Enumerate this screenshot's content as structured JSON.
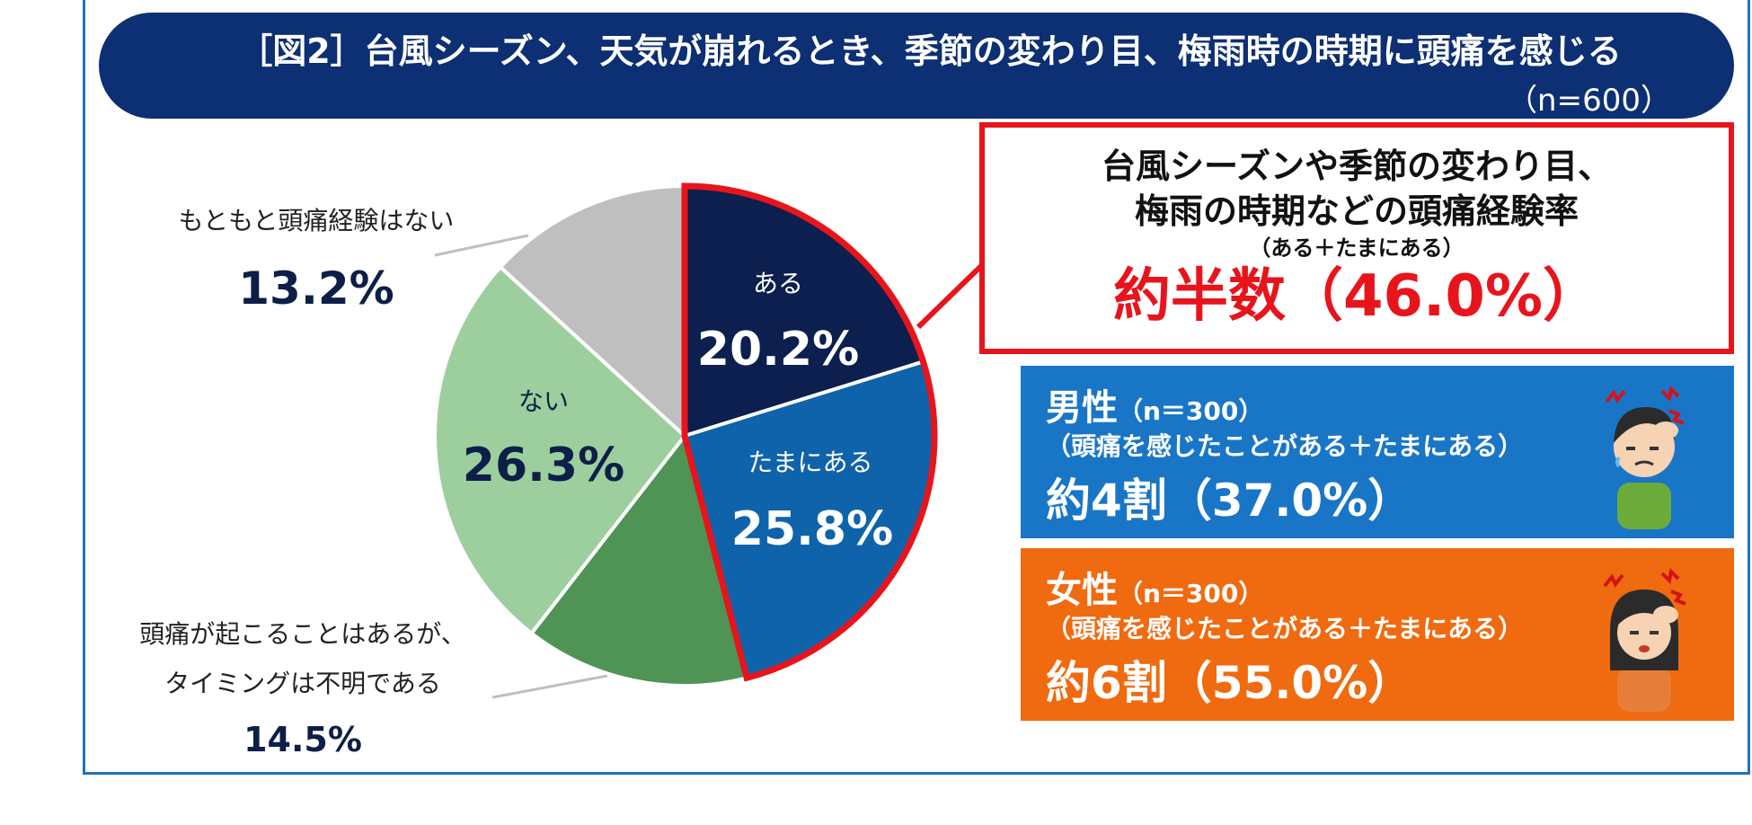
{
  "header": {
    "title": "［図2］台風シーズン、天気が崩れるとき、季節の変わり目、梅雨時の時期に頭痛を感じる",
    "sample": "（n=600）"
  },
  "chart_data": {
    "type": "pie",
    "title": "［図2］台風シーズン、天気が崩れるとき、季節の変わり目、梅雨時の時期に頭痛を感じる",
    "slices": [
      {
        "label": "ある",
        "value_label": "20.2%",
        "value": 20.2,
        "color": "#0c1f4e"
      },
      {
        "label": "たまにある",
        "value_label": "25.8%",
        "value": 25.8,
        "color": "#0f63ab"
      },
      {
        "label_lines": [
          "頭痛が起こることはあるが、",
          "タイミングは不明である"
        ],
        "value_label": "14.5%",
        "value": 14.5,
        "color": "#4f9455"
      },
      {
        "label": "ない",
        "value_label": "26.3%",
        "value": 26.3,
        "color": "#9ccf9d"
      },
      {
        "label": "もともと頭痛経験はない",
        "value_label": "13.2%",
        "value": 13.2,
        "color": "#bfbfbf"
      }
    ],
    "highlight_color": "#e8141c",
    "legend": "none"
  },
  "callout": {
    "line1": "台風シーズンや季節の変わり目、",
    "line2": "梅雨の時期などの頭痛経験率",
    "line3": "（ある＋たまにある）",
    "value": "約半数（46.0%）"
  },
  "male": {
    "gender": "男性",
    "n": "（n＝300）",
    "sub": "（頭痛を感じたことがある＋たまにある）",
    "value": "約4割（37.0%）",
    "color": "#1976c7"
  },
  "female": {
    "gender": "女性",
    "n": "（n＝300）",
    "sub": "（頭痛を感じたことがある＋たまにある）",
    "value": "約6割（55.0%）",
    "color": "#f06a0f"
  }
}
